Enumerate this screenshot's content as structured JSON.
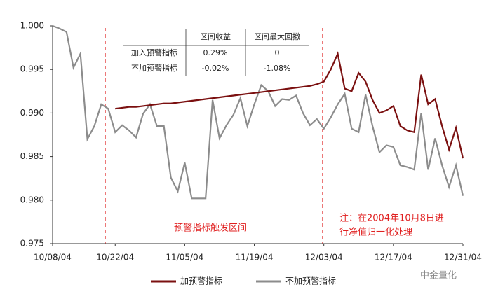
{
  "chart_data": {
    "type": "line",
    "categories": [
      "10/08/04",
      null,
      null,
      null,
      null,
      null,
      null,
      null,
      null,
      "10/22/04",
      null,
      null,
      null,
      null,
      null,
      null,
      null,
      null,
      null,
      "11/05/04",
      null,
      null,
      null,
      null,
      null,
      null,
      null,
      null,
      null,
      "11/19/04",
      null,
      null,
      null,
      null,
      null,
      null,
      null,
      null,
      null,
      "12/03/04",
      null,
      null,
      null,
      null,
      null,
      null,
      null,
      null,
      null,
      "12/17/04",
      null,
      null,
      null,
      null,
      null,
      null,
      null,
      null,
      null,
      "12/31/04"
    ],
    "series": [
      {
        "name": "加预警指标",
        "color": "#7b1010",
        "values": [
          null,
          null,
          null,
          null,
          null,
          null,
          null,
          null,
          null,
          0.9905,
          0.9906,
          0.9907,
          0.9907,
          0.9908,
          0.9909,
          0.991,
          0.9911,
          0.9911,
          0.9912,
          0.9913,
          0.9914,
          0.9915,
          0.9916,
          0.9917,
          0.9918,
          0.9919,
          0.992,
          0.9921,
          0.9922,
          0.9923,
          0.9924,
          0.9925,
          0.9926,
          0.9927,
          0.9928,
          0.9929,
          0.993,
          0.9931,
          0.9933,
          0.9936,
          0.995,
          0.9968,
          0.9928,
          0.9925,
          0.9946,
          0.9936,
          0.9915,
          0.99,
          0.9903,
          0.9908,
          0.9885,
          0.988,
          0.9878,
          0.9944,
          0.991,
          0.9916,
          0.9885,
          0.9858,
          0.9883,
          0.9848
        ]
      },
      {
        "name": "不加预警指标",
        "color": "#8c8c8c",
        "values": [
          1.0,
          0.9997,
          0.9993,
          0.9952,
          0.9968,
          0.987,
          0.9885,
          0.991,
          0.9905,
          0.9878,
          0.9886,
          0.988,
          0.9872,
          0.9899,
          0.991,
          0.9885,
          0.9885,
          0.9826,
          0.981,
          0.9843,
          0.9802,
          0.9802,
          0.9802,
          0.9915,
          0.9871,
          0.9886,
          0.9898,
          0.9917,
          0.9885,
          0.991,
          0.9932,
          0.9925,
          0.9908,
          0.9916,
          0.9915,
          0.992,
          0.99,
          0.9886,
          0.9893,
          0.9882,
          0.9895,
          0.991,
          0.9922,
          0.9882,
          0.9878,
          0.9921,
          0.9885,
          0.9855,
          0.9863,
          0.9861,
          0.984,
          0.9838,
          0.9835,
          0.99,
          0.9835,
          0.9871,
          0.984,
          0.9815,
          0.984,
          0.9805
        ]
      }
    ],
    "ylim": [
      0.975,
      1.0
    ],
    "yticks": [
      {
        "value": 0.975,
        "label": "0.975"
      },
      {
        "value": 0.98,
        "label": "0.980"
      },
      0.985,
      {
        "value": 0.99,
        "label": "0.990"
      },
      0.995,
      {
        "value": 1.0,
        "label": "1.000"
      }
    ],
    "grid": false,
    "legend": "bottom",
    "table": {
      "header": [
        "区间收益",
        "区间最大回撤"
      ],
      "rows": [
        [
          "加入预警指标",
          "0.29%",
          "0"
        ],
        [
          "不加预警指标",
          "-0.02%",
          "-1.08%"
        ]
      ]
    },
    "annotations": [
      "预警指标触发区间",
      "注：在2004年10月8日进",
      "行净值归一化处理"
    ],
    "watermark": "中金量化"
  }
}
